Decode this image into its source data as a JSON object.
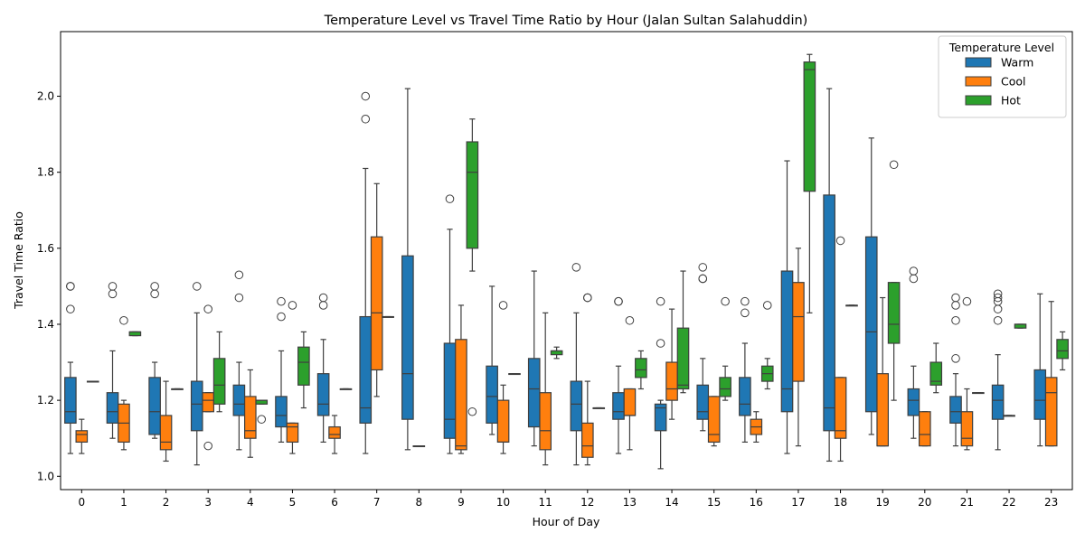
{
  "chart_data": {
    "type": "box",
    "title": "Temperature Level vs Travel Time Ratio by Hour (Jalan Sultan Salahuddin)",
    "xlabel": "Hour of Day",
    "ylabel": "Travel Time Ratio",
    "ylim": [
      0.965,
      2.17
    ],
    "yticks": [
      1.0,
      1.2,
      1.4,
      1.6,
      1.8,
      2.0
    ],
    "ytick_labels": [
      "1.0",
      "1.2",
      "1.4",
      "1.6",
      "1.8",
      "2.0"
    ],
    "categories": [
      "0",
      "1",
      "2",
      "3",
      "4",
      "5",
      "6",
      "7",
      "8",
      "9",
      "10",
      "11",
      "12",
      "13",
      "14",
      "15",
      "16",
      "17",
      "18",
      "19",
      "20",
      "21",
      "22",
      "23"
    ],
    "grid": false,
    "legend": {
      "title": "Temperature Level",
      "placement": "top-right"
    },
    "series": [
      {
        "name": "Warm",
        "color": "#1f77b4",
        "boxes": [
          {
            "x": "0",
            "whislo": 1.06,
            "q1": 1.14,
            "med": 1.17,
            "q3": 1.26,
            "whishi": 1.3,
            "fliers": [
              1.5,
              1.5,
              1.44
            ]
          },
          {
            "x": "1",
            "whislo": 1.1,
            "q1": 1.14,
            "med": 1.17,
            "q3": 1.22,
            "whishi": 1.33,
            "fliers": [
              1.5,
              1.48
            ]
          },
          {
            "x": "2",
            "whislo": 1.1,
            "q1": 1.11,
            "med": 1.17,
            "q3": 1.26,
            "whishi": 1.3,
            "fliers": [
              1.5,
              1.48
            ]
          },
          {
            "x": "3",
            "whislo": 1.03,
            "q1": 1.12,
            "med": 1.19,
            "q3": 1.25,
            "whishi": 1.43,
            "fliers": [
              1.5
            ]
          },
          {
            "x": "4",
            "whislo": 1.07,
            "q1": 1.16,
            "med": 1.19,
            "q3": 1.24,
            "whishi": 1.3,
            "fliers": [
              1.53,
              1.47
            ]
          },
          {
            "x": "5",
            "whislo": 1.09,
            "q1": 1.13,
            "med": 1.16,
            "q3": 1.21,
            "whishi": 1.33,
            "fliers": [
              1.46,
              1.42
            ]
          },
          {
            "x": "6",
            "whislo": 1.09,
            "q1": 1.16,
            "med": 1.19,
            "q3": 1.27,
            "whishi": 1.36,
            "fliers": [
              1.47,
              1.45
            ]
          },
          {
            "x": "7",
            "whislo": 1.06,
            "q1": 1.14,
            "med": 1.18,
            "q3": 1.42,
            "whishi": 1.81,
            "fliers": [
              2.0,
              1.94
            ]
          },
          {
            "x": "8",
            "whislo": 1.07,
            "q1": 1.15,
            "med": 1.27,
            "q3": 1.58,
            "whishi": 2.02,
            "fliers": []
          },
          {
            "x": "9",
            "whislo": 1.06,
            "q1": 1.1,
            "med": 1.15,
            "q3": 1.35,
            "whishi": 1.65,
            "fliers": [
              1.73
            ]
          },
          {
            "x": "10",
            "whislo": 1.11,
            "q1": 1.14,
            "med": 1.21,
            "q3": 1.29,
            "whishi": 1.5,
            "fliers": []
          },
          {
            "x": "11",
            "whislo": 1.08,
            "q1": 1.13,
            "med": 1.23,
            "q3": 1.31,
            "whishi": 1.54,
            "fliers": []
          },
          {
            "x": "12",
            "whislo": 1.03,
            "q1": 1.12,
            "med": 1.19,
            "q3": 1.25,
            "whishi": 1.43,
            "fliers": [
              1.55
            ]
          },
          {
            "x": "13",
            "whislo": 1.06,
            "q1": 1.15,
            "med": 1.17,
            "q3": 1.22,
            "whishi": 1.29,
            "fliers": [
              1.46,
              1.46
            ]
          },
          {
            "x": "14",
            "whislo": 1.02,
            "q1": 1.12,
            "med": 1.18,
            "q3": 1.19,
            "whishi": 1.2,
            "fliers": [
              1.46,
              1.35
            ]
          },
          {
            "x": "15",
            "whislo": 1.12,
            "q1": 1.15,
            "med": 1.17,
            "q3": 1.24,
            "whishi": 1.31,
            "fliers": [
              1.55,
              1.52,
              1.52
            ]
          },
          {
            "x": "16",
            "whislo": 1.09,
            "q1": 1.16,
            "med": 1.19,
            "q3": 1.26,
            "whishi": 1.35,
            "fliers": [
              1.46,
              1.43
            ]
          },
          {
            "x": "17",
            "whislo": 1.06,
            "q1": 1.17,
            "med": 1.23,
            "q3": 1.54,
            "whishi": 1.83,
            "fliers": []
          },
          {
            "x": "18",
            "whislo": 1.04,
            "q1": 1.12,
            "med": 1.18,
            "q3": 1.74,
            "whishi": 2.02,
            "fliers": []
          },
          {
            "x": "19",
            "whislo": 1.11,
            "q1": 1.17,
            "med": 1.38,
            "q3": 1.63,
            "whishi": 1.89,
            "fliers": []
          },
          {
            "x": "20",
            "whislo": 1.1,
            "q1": 1.16,
            "med": 1.2,
            "q3": 1.23,
            "whishi": 1.29,
            "fliers": [
              1.54,
              1.52
            ]
          },
          {
            "x": "21",
            "whislo": 1.08,
            "q1": 1.14,
            "med": 1.17,
            "q3": 1.21,
            "whishi": 1.27,
            "fliers": [
              1.47,
              1.45,
              1.41,
              1.31
            ]
          },
          {
            "x": "22",
            "whislo": 1.07,
            "q1": 1.15,
            "med": 1.2,
            "q3": 1.24,
            "whishi": 1.32,
            "fliers": [
              1.48,
              1.47,
              1.46,
              1.44,
              1.41
            ]
          },
          {
            "x": "23",
            "whislo": 1.08,
            "q1": 1.15,
            "med": 1.2,
            "q3": 1.28,
            "whishi": 1.48,
            "fliers": []
          }
        ]
      },
      {
        "name": "Cool",
        "color": "#ff7f0e",
        "boxes": [
          {
            "x": "0",
            "whislo": 1.06,
            "q1": 1.09,
            "med": 1.11,
            "q3": 1.12,
            "whishi": 1.15,
            "fliers": []
          },
          {
            "x": "1",
            "whislo": 1.07,
            "q1": 1.09,
            "med": 1.14,
            "q3": 1.19,
            "whishi": 1.2,
            "fliers": [
              1.41
            ]
          },
          {
            "x": "2",
            "whislo": 1.04,
            "q1": 1.07,
            "med": 1.09,
            "q3": 1.16,
            "whishi": 1.25,
            "fliers": []
          },
          {
            "x": "3",
            "whislo": 1.17,
            "q1": 1.17,
            "med": 1.2,
            "q3": 1.22,
            "whishi": 1.22,
            "fliers": [
              1.44,
              1.08
            ]
          },
          {
            "x": "4",
            "whislo": 1.05,
            "q1": 1.1,
            "med": 1.12,
            "q3": 1.21,
            "whishi": 1.28,
            "fliers": []
          },
          {
            "x": "5",
            "whislo": 1.06,
            "q1": 1.09,
            "med": 1.13,
            "q3": 1.14,
            "whishi": 1.14,
            "fliers": [
              1.45
            ]
          },
          {
            "x": "6",
            "whislo": 1.06,
            "q1": 1.1,
            "med": 1.11,
            "q3": 1.13,
            "whishi": 1.16,
            "fliers": []
          },
          {
            "x": "7",
            "whislo": 1.21,
            "q1": 1.28,
            "med": 1.43,
            "q3": 1.63,
            "whishi": 1.77,
            "fliers": []
          },
          {
            "x": "8",
            "whislo": 1.08,
            "q1": 1.08,
            "med": 1.08,
            "q3": 1.08,
            "whishi": 1.08,
            "fliers": []
          },
          {
            "x": "9",
            "whislo": 1.06,
            "q1": 1.07,
            "med": 1.08,
            "q3": 1.36,
            "whishi": 1.45,
            "fliers": []
          },
          {
            "x": "10",
            "whislo": 1.06,
            "q1": 1.09,
            "med": 1.09,
            "q3": 1.2,
            "whishi": 1.24,
            "fliers": [
              1.45
            ]
          },
          {
            "x": "11",
            "whislo": 1.03,
            "q1": 1.07,
            "med": 1.12,
            "q3": 1.22,
            "whishi": 1.43,
            "fliers": []
          },
          {
            "x": "12",
            "whislo": 1.03,
            "q1": 1.05,
            "med": 1.08,
            "q3": 1.14,
            "whishi": 1.25,
            "fliers": [
              1.47,
              1.47
            ]
          },
          {
            "x": "13",
            "whislo": 1.07,
            "q1": 1.16,
            "med": 1.16,
            "q3": 1.23,
            "whishi": 1.23,
            "fliers": [
              1.41
            ]
          },
          {
            "x": "14",
            "whislo": 1.15,
            "q1": 1.2,
            "med": 1.23,
            "q3": 1.3,
            "whishi": 1.44,
            "fliers": []
          },
          {
            "x": "15",
            "whislo": 1.08,
            "q1": 1.09,
            "med": 1.11,
            "q3": 1.21,
            "whishi": 1.21,
            "fliers": []
          },
          {
            "x": "16",
            "whislo": 1.09,
            "q1": 1.11,
            "med": 1.13,
            "q3": 1.15,
            "whishi": 1.17,
            "fliers": []
          },
          {
            "x": "17",
            "whislo": 1.08,
            "q1": 1.25,
            "med": 1.42,
            "q3": 1.51,
            "whishi": 1.6,
            "fliers": []
          },
          {
            "x": "18",
            "whislo": 1.04,
            "q1": 1.1,
            "med": 1.12,
            "q3": 1.26,
            "whishi": 1.26,
            "fliers": [
              1.62
            ]
          },
          {
            "x": "19",
            "whislo": 1.08,
            "q1": 1.08,
            "med": 1.08,
            "q3": 1.27,
            "whishi": 1.47,
            "fliers": []
          },
          {
            "x": "20",
            "whislo": 1.08,
            "q1": 1.08,
            "med": 1.11,
            "q3": 1.17,
            "whishi": 1.17,
            "fliers": []
          },
          {
            "x": "21",
            "whislo": 1.07,
            "q1": 1.08,
            "med": 1.1,
            "q3": 1.17,
            "whishi": 1.23,
            "fliers": [
              1.46
            ]
          },
          {
            "x": "22",
            "whislo": 1.16,
            "q1": 1.16,
            "med": 1.16,
            "q3": 1.16,
            "whishi": 1.16,
            "fliers": []
          },
          {
            "x": "23",
            "whislo": 1.08,
            "q1": 1.08,
            "med": 1.22,
            "q3": 1.26,
            "whishi": 1.46,
            "fliers": []
          }
        ]
      },
      {
        "name": "Hot",
        "color": "#2ca02c",
        "boxes": [
          {
            "x": "0",
            "whislo": 1.25,
            "q1": 1.25,
            "med": 1.25,
            "q3": 1.25,
            "whishi": 1.25,
            "fliers": []
          },
          {
            "x": "1",
            "whislo": 1.37,
            "q1": 1.37,
            "med": 1.38,
            "q3": 1.38,
            "whishi": 1.38,
            "fliers": []
          },
          {
            "x": "2",
            "whislo": 1.23,
            "q1": 1.23,
            "med": 1.23,
            "q3": 1.23,
            "whishi": 1.23,
            "fliers": []
          },
          {
            "x": "3",
            "whislo": 1.17,
            "q1": 1.19,
            "med": 1.24,
            "q3": 1.31,
            "whishi": 1.38,
            "fliers": []
          },
          {
            "x": "4",
            "whislo": 1.19,
            "q1": 1.19,
            "med": 1.2,
            "q3": 1.2,
            "whishi": 1.2,
            "fliers": [
              1.15
            ]
          },
          {
            "x": "5",
            "whislo": 1.18,
            "q1": 1.24,
            "med": 1.3,
            "q3": 1.34,
            "whishi": 1.38,
            "fliers": []
          },
          {
            "x": "6",
            "whislo": 1.23,
            "q1": 1.23,
            "med": 1.23,
            "q3": 1.23,
            "whishi": 1.23,
            "fliers": []
          },
          {
            "x": "7",
            "whislo": 1.42,
            "q1": 1.42,
            "med": 1.42,
            "q3": 1.42,
            "whishi": 1.42,
            "fliers": []
          },
          {
            "x": "9",
            "whislo": 1.54,
            "q1": 1.6,
            "med": 1.8,
            "q3": 1.88,
            "whishi": 1.94,
            "fliers": [
              1.17
            ]
          },
          {
            "x": "10",
            "whislo": 1.27,
            "q1": 1.27,
            "med": 1.27,
            "q3": 1.27,
            "whishi": 1.27,
            "fliers": []
          },
          {
            "x": "11",
            "whislo": 1.31,
            "q1": 1.32,
            "med": 1.33,
            "q3": 1.33,
            "whishi": 1.34,
            "fliers": []
          },
          {
            "x": "12",
            "whislo": 1.18,
            "q1": 1.18,
            "med": 1.18,
            "q3": 1.18,
            "whishi": 1.18,
            "fliers": []
          },
          {
            "x": "13",
            "whislo": 1.23,
            "q1": 1.26,
            "med": 1.28,
            "q3": 1.31,
            "whishi": 1.33,
            "fliers": []
          },
          {
            "x": "14",
            "whislo": 1.22,
            "q1": 1.23,
            "med": 1.24,
            "q3": 1.39,
            "whishi": 1.54,
            "fliers": []
          },
          {
            "x": "15",
            "whislo": 1.2,
            "q1": 1.21,
            "med": 1.23,
            "q3": 1.26,
            "whishi": 1.29,
            "fliers": [
              1.46
            ]
          },
          {
            "x": "16",
            "whislo": 1.23,
            "q1": 1.25,
            "med": 1.27,
            "q3": 1.29,
            "whishi": 1.31,
            "fliers": [
              1.45
            ]
          },
          {
            "x": "17",
            "whislo": 1.43,
            "q1": 1.75,
            "med": 2.07,
            "q3": 2.09,
            "whishi": 2.11,
            "fliers": []
          },
          {
            "x": "18",
            "whislo": 1.45,
            "q1": 1.45,
            "med": 1.45,
            "q3": 1.45,
            "whishi": 1.45,
            "fliers": []
          },
          {
            "x": "19",
            "whislo": 1.2,
            "q1": 1.35,
            "med": 1.4,
            "q3": 1.51,
            "whishi": 1.51,
            "fliers": [
              1.82
            ]
          },
          {
            "x": "20",
            "whislo": 1.22,
            "q1": 1.24,
            "med": 1.25,
            "q3": 1.3,
            "whishi": 1.35,
            "fliers": []
          },
          {
            "x": "21",
            "whislo": 1.22,
            "q1": 1.22,
            "med": 1.22,
            "q3": 1.22,
            "whishi": 1.22,
            "fliers": []
          },
          {
            "x": "22",
            "whislo": 1.39,
            "q1": 1.39,
            "med": 1.4,
            "q3": 1.4,
            "whishi": 1.4,
            "fliers": []
          },
          {
            "x": "23",
            "whislo": 1.28,
            "q1": 1.31,
            "med": 1.33,
            "q3": 1.36,
            "whishi": 1.38,
            "fliers": []
          }
        ]
      }
    ]
  }
}
